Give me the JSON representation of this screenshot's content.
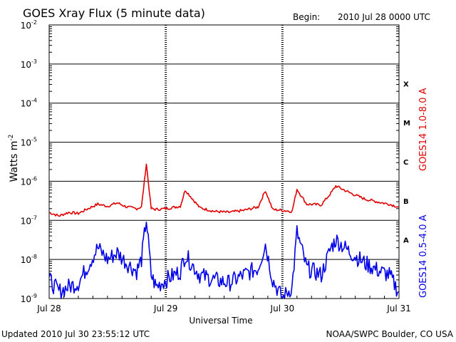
{
  "header": {
    "title": "GOES Xray Flux (5 minute data)",
    "begin_label": "Begin:",
    "begin_value": "2010 Jul 28 0000 UTC"
  },
  "footer": {
    "updated": "Updated 2010 Jul 30 23:55:12 UTC",
    "credit": "NOAA/SWPC Boulder, CO USA"
  },
  "colors": {
    "long_channel": "#e00000",
    "short_channel": "#0000e8",
    "axis": "#000000"
  },
  "chart_data": {
    "type": "line",
    "title": "GOES Xray Flux (5 minute data)",
    "xlabel": "Universal Time",
    "ylabel_base": "Watts m",
    "ylabel_exp": "-2",
    "yscale": "log",
    "ylim": [
      1e-09,
      0.01
    ],
    "xlim": [
      "2010-07-28",
      "2010-07-31"
    ],
    "grid": true,
    "x_ticks": [
      "Jul 28",
      "Jul 29",
      "Jul 30",
      "Jul 31"
    ],
    "y_tick_exponents": [
      "-2",
      "-3",
      "-4",
      "-5",
      "-6",
      "-7",
      "-8",
      "-9"
    ],
    "y_tick_base": "10",
    "flare_classes": [
      {
        "label": "X",
        "value": 0.0001
      },
      {
        "label": "M",
        "value": 1e-05
      },
      {
        "label": "C",
        "value": 1e-06
      },
      {
        "label": "B",
        "value": 1e-07
      },
      {
        "label": "A",
        "value": 1e-08
      }
    ],
    "x_dates": [
      "2010-07-28",
      "2010-07-28 12:00",
      "2010-07-28 20:00",
      "2010-07-29",
      "2010-07-29 12:00",
      "2010-07-29 20:00",
      "2010-07-30",
      "2010-07-30 12:00",
      "2010-07-30 20:00",
      "2010-07-31"
    ],
    "series": [
      {
        "name": "GOES14 1.0-8.0 A",
        "color": "#e00000",
        "x": [
          "2010-07-28 00:00",
          "2010-07-28 02:00",
          "2010-07-28 04:00",
          "2010-07-28 06:00",
          "2010-07-28 08:00",
          "2010-07-28 10:00",
          "2010-07-28 12:00",
          "2010-07-28 14:00",
          "2010-07-28 16:00",
          "2010-07-28 18:00",
          "2010-07-28 19:00",
          "2010-07-28 20:00",
          "2010-07-28 21:00",
          "2010-07-28 22:00",
          "2010-07-29 00:00",
          "2010-07-29 03:00",
          "2010-07-29 04:00",
          "2010-07-29 07:00",
          "2010-07-29 10:00",
          "2010-07-29 13:00",
          "2010-07-29 16:00",
          "2010-07-29 19:00",
          "2010-07-29 20:30",
          "2010-07-29 22:00",
          "2010-07-30 00:00",
          "2010-07-30 02:00",
          "2010-07-30 03:00",
          "2010-07-30 05:00",
          "2010-07-30 08:00",
          "2010-07-30 10:00",
          "2010-07-30 11:00",
          "2010-07-30 14:00",
          "2010-07-30 17:00",
          "2010-07-30 20:00",
          "2010-07-30 22:00",
          "2010-07-30 23:55"
        ],
        "y": [
          1.6e-07,
          1.3e-07,
          1.6e-07,
          1.5e-07,
          2e-07,
          2.6e-07,
          2.3e-07,
          2.8e-07,
          2.2e-07,
          2e-07,
          2.2e-07,
          2.8e-06,
          2e-07,
          1.9e-07,
          2e-07,
          2.3e-07,
          6e-07,
          2.1e-07,
          1.7e-07,
          1.6e-07,
          1.8e-07,
          2.2e-07,
          5.8e-07,
          1.9e-07,
          1.8e-07,
          1.7e-07,
          6.3e-07,
          2.6e-07,
          2.5e-07,
          5e-07,
          7.6e-07,
          5e-07,
          3.5e-07,
          2.9e-07,
          2.6e-07,
          2.2e-07
        ]
      },
      {
        "name": "GOES14 0.5-4.0 A",
        "color": "#0000e8",
        "x": [
          "2010-07-28 00:00",
          "2010-07-28 02:00",
          "2010-07-28 04:00",
          "2010-07-28 06:00",
          "2010-07-28 08:00",
          "2010-07-28 10:00",
          "2010-07-28 12:00",
          "2010-07-28 14:00",
          "2010-07-28 16:00",
          "2010-07-28 18:00",
          "2010-07-28 19:00",
          "2010-07-28 20:00",
          "2010-07-28 21:00",
          "2010-07-28 22:00",
          "2010-07-29 00:00",
          "2010-07-29 03:00",
          "2010-07-29 04:00",
          "2010-07-29 07:00",
          "2010-07-29 10:00",
          "2010-07-29 13:00",
          "2010-07-29 16:00",
          "2010-07-29 19:00",
          "2010-07-29 20:30",
          "2010-07-29 22:00",
          "2010-07-30 00:00",
          "2010-07-30 02:00",
          "2010-07-30 03:00",
          "2010-07-30 05:00",
          "2010-07-30 08:00",
          "2010-07-30 10:00",
          "2010-07-30 11:00",
          "2010-07-30 14:00",
          "2010-07-30 17:00",
          "2010-07-30 20:00",
          "2010-07-30 22:00",
          "2010-07-30 23:55"
        ],
        "y": [
          3e-09,
          1.5e-09,
          2e-09,
          2.5e-09,
          7e-09,
          2e-08,
          1e-08,
          1.5e-08,
          8e-09,
          5e-09,
          1e-08,
          1.1e-07,
          4e-09,
          2e-09,
          3e-09,
          5e-09,
          1.3e-08,
          4e-09,
          3e-09,
          2.5e-09,
          4e-09,
          6e-09,
          2.5e-08,
          3e-09,
          1e-09,
          2e-09,
          5e-08,
          6e-09,
          4e-09,
          2e-08,
          3.2e-08,
          1.5e-08,
          8e-09,
          5e-09,
          4e-09,
          1.5e-09
        ]
      }
    ]
  }
}
